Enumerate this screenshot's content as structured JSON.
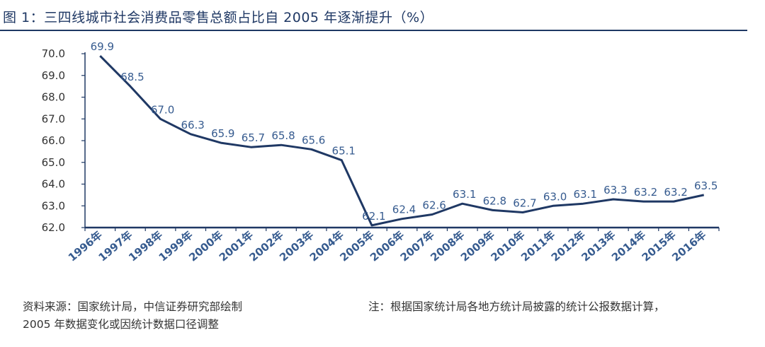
{
  "header": {
    "title": "图 1：三四线城市社会消费品零售总额占比自 2005 年逐渐提升（%）"
  },
  "footer": {
    "source": "资料来源：国家统计局，中信证券研究部绘制",
    "source_note": "2005 年数据变化或因统计数据口径调整",
    "note": "注：根据国家统计局各地方统计局披露的统计公报数据计算，"
  },
  "colors": {
    "title": "#1f3864",
    "line": "#1f3864",
    "labels": "#365b8f"
  },
  "chart_data": {
    "type": "line",
    "title": "三四线城市社会消费品零售总额占比自 2005 年逐渐提升（%）",
    "xlabel": "",
    "ylabel": "%",
    "ylim": [
      62.0,
      70.0
    ],
    "yticks": [
      "62.0",
      "63.0",
      "64.0",
      "65.0",
      "66.0",
      "67.0",
      "68.0",
      "69.0",
      "70.0"
    ],
    "grid": false,
    "categories": [
      "1996年",
      "1997年",
      "1998年",
      "1999年",
      "2000年",
      "2001年",
      "2002年",
      "2003年",
      "2004年",
      "2005年",
      "2006年",
      "2007年",
      "2008年",
      "2009年",
      "2010年",
      "2011年",
      "2012年",
      "2013年",
      "2014年",
      "2015年",
      "2016年"
    ],
    "series": [
      {
        "name": "三四线城市社会消费品零售总额占比",
        "values": [
          69.9,
          68.5,
          67.0,
          66.3,
          65.9,
          65.7,
          65.8,
          65.6,
          65.1,
          62.1,
          62.4,
          62.6,
          63.1,
          62.8,
          62.7,
          63.0,
          63.1,
          63.3,
          63.2,
          63.2,
          63.5
        ],
        "labels": [
          "69.9",
          "68.5",
          "67.0",
          "66.3",
          "65.9",
          "65.7",
          "65.8",
          "65.6",
          "65.1",
          "62.1",
          "62.4",
          "62.6",
          "63.1",
          "62.8",
          "62.7",
          "63.0",
          "63.1",
          "63.3",
          "63.2",
          "63.2",
          "63.5"
        ]
      }
    ]
  }
}
